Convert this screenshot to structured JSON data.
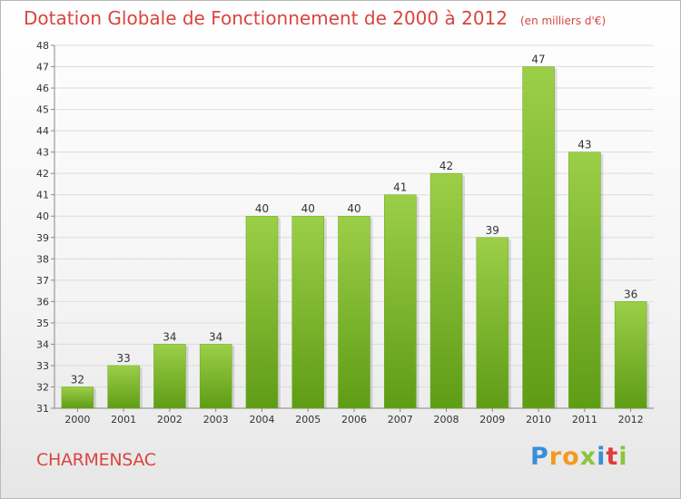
{
  "title": "Dotation Globale de Fonctionnement de 2000 à 2012",
  "subtitle": "(en milliers d'€)",
  "town": "CHARMENSAC",
  "logo": {
    "letters": [
      "P",
      "r",
      "o",
      "x",
      "i",
      "t",
      "i"
    ],
    "colors": [
      "#3a8ed6",
      "#f29a1f",
      "#f29a1f",
      "#8cc43c",
      "#3a8ed6",
      "#e23b3b",
      "#8cc43c"
    ]
  },
  "chart_data": {
    "type": "bar",
    "categories": [
      "2000",
      "2001",
      "2002",
      "2003",
      "2004",
      "2005",
      "2006",
      "2007",
      "2008",
      "2009",
      "2010",
      "2011",
      "2012"
    ],
    "values": [
      32,
      33,
      34,
      34,
      40,
      40,
      40,
      41,
      42,
      39,
      47,
      43,
      36
    ],
    "ylim": [
      31,
      48
    ],
    "yticks": [
      31,
      32,
      33,
      34,
      35,
      36,
      37,
      38,
      39,
      40,
      41,
      42,
      43,
      44,
      45,
      46,
      47,
      48
    ],
    "grid": true,
    "bar_color_top": "#9ccf48",
    "bar_color_bottom": "#5f9c16"
  }
}
